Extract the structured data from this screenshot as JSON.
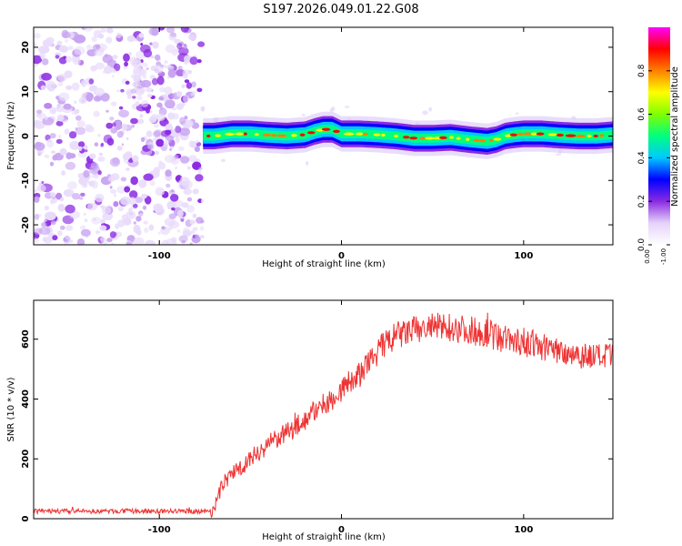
{
  "figure_title": "S197.2026.049.01.22.G08",
  "chart_data": [
    {
      "type": "heatmap",
      "title": "S197.2026.049.01.22.G08",
      "xlabel": "Height of straight line (km)",
      "ylabel": "Frequency (Hz)",
      "xlim": [
        -169,
        149
      ],
      "ylim": [
        -24.5,
        24.5
      ],
      "xticks": [
        -100,
        0,
        100
      ],
      "yticks": [
        -20,
        -10,
        0,
        10,
        20
      ],
      "ytick_labels": [
        "-20",
        "-10",
        "0",
        "10",
        "20"
      ],
      "colorbar": {
        "label": "Normalized spectral amplitude",
        "range": [
          0,
          1
        ],
        "ticks": [
          0.0,
          0.2,
          0.4,
          0.6,
          0.8
        ],
        "tick_labels": [
          "0.0",
          "0.2",
          "0.4",
          "0.6",
          "0.8"
        ],
        "colormap": [
          "#ffffff",
          "#e6d2fa",
          "#8a2be2",
          "#0000ff",
          "#00c8ff",
          "#00ff80",
          "#80ff00",
          "#ffff00",
          "#ff8000",
          "#ff0000",
          "#ff00ff"
        ]
      },
      "noise_region_x": [
        -169,
        -76
      ],
      "signal_track": {
        "x": [
          -76,
          -70,
          -60,
          -50,
          -40,
          -30,
          -20,
          -15,
          -10,
          -5,
          0,
          10,
          20,
          30,
          40,
          50,
          60,
          70,
          80,
          85,
          90,
          95,
          100,
          110,
          120,
          130,
          140,
          149
        ],
        "y": [
          0,
          0,
          0.5,
          0.5,
          0.2,
          0,
          0.3,
          1.0,
          1.5,
          1.5,
          0.5,
          0.5,
          0.3,
          0,
          -0.5,
          -0.5,
          -0.3,
          -0.8,
          -1.2,
          -0.8,
          0,
          0.3,
          0.5,
          0.5,
          0.2,
          0,
          0,
          0.3
        ]
      },
      "annotations": [
        "0.00",
        "-1.00"
      ]
    },
    {
      "type": "line",
      "xlabel": "Height of straight line (km)",
      "ylabel": "SNR (10 * v/v)",
      "xlim": [
        -169,
        149
      ],
      "ylim": [
        0,
        730
      ],
      "xticks": [
        -100,
        0,
        100
      ],
      "yticks": [
        0,
        200,
        400,
        600
      ],
      "series": [
        {
          "name": "SNR",
          "color": "#ee3333",
          "x": [
            -169,
            -150,
            -130,
            -110,
            -90,
            -75,
            -70,
            -65,
            -60,
            -55,
            -50,
            -45,
            -40,
            -35,
            -30,
            -25,
            -20,
            -15,
            -10,
            -5,
            0,
            5,
            10,
            15,
            20,
            25,
            30,
            40,
            50,
            60,
            70,
            80,
            90,
            100,
            110,
            120,
            130,
            140,
            149
          ],
          "values": [
            25,
            25,
            25,
            25,
            25,
            25,
            30,
            120,
            150,
            175,
            200,
            225,
            250,
            270,
            285,
            310,
            330,
            360,
            380,
            400,
            430,
            460,
            480,
            520,
            560,
            590,
            610,
            630,
            640,
            640,
            630,
            620,
            600,
            590,
            575,
            560,
            550,
            540,
            540
          ]
        }
      ]
    }
  ]
}
